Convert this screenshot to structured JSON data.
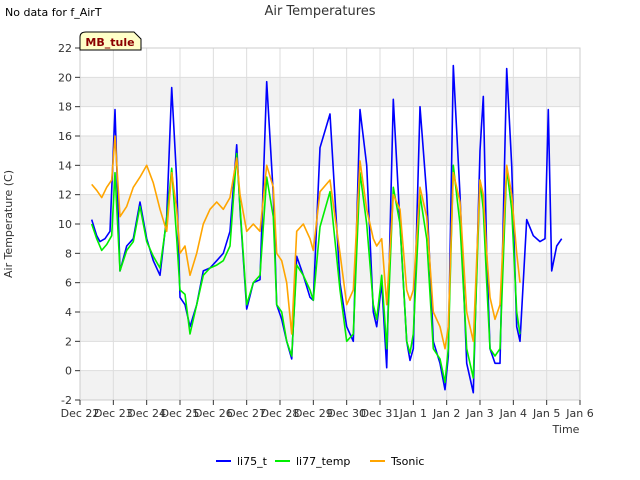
{
  "header": {
    "no_data": "No data for f_AirT"
  },
  "badge": {
    "label": "MB_tule"
  },
  "chart_data": {
    "type": "line",
    "title": "Air Temperatures",
    "xlabel": "Time",
    "ylabel": "Air Temperature (C)",
    "ylim": [
      -2,
      22
    ],
    "yticks": [
      -2,
      0,
      2,
      4,
      6,
      8,
      10,
      12,
      14,
      16,
      18,
      20,
      22
    ],
    "xlim": [
      0,
      15
    ],
    "xticks": [
      0,
      1,
      2,
      3,
      4,
      5,
      6,
      7,
      8,
      9,
      10,
      11,
      12,
      13,
      14,
      15
    ],
    "xtick_labels": [
      "Dec 22",
      "Dec 23",
      "Dec 24",
      "Dec 25",
      "Dec 26",
      "Dec 27",
      "Dec 28",
      "Dec 29",
      "Dec 30",
      "Dec 31",
      "Jan 1",
      "Jan 2",
      "Jan 3",
      "Jan 4",
      "Jan 5",
      "Jan 6"
    ],
    "grid": true,
    "band_shading": true,
    "legend_position": "bottom-center",
    "series": [
      {
        "name": "li75_t",
        "color": "#0000ff",
        "x": [
          0.35,
          0.5,
          0.6,
          0.75,
          0.9,
          1.05,
          1.2,
          1.4,
          1.6,
          1.8,
          2.0,
          2.2,
          2.4,
          2.6,
          2.75,
          2.9,
          3.0,
          3.15,
          3.3,
          3.5,
          3.7,
          3.9,
          4.1,
          4.3,
          4.5,
          4.7,
          4.8,
          5.0,
          5.2,
          5.4,
          5.6,
          5.8,
          5.9,
          6.05,
          6.2,
          6.35,
          6.5,
          6.7,
          6.9,
          7.0,
          7.2,
          7.5,
          7.8,
          8.0,
          8.2,
          8.4,
          8.6,
          8.8,
          8.9,
          9.05,
          9.2,
          9.4,
          9.6,
          9.8,
          9.9,
          10.0,
          10.2,
          10.4,
          10.6,
          10.8,
          10.95,
          11.05,
          11.2,
          11.4,
          11.6,
          11.8,
          12.0,
          12.1,
          12.2,
          12.3,
          12.45,
          12.6,
          12.8,
          12.95,
          13.1,
          13.2,
          13.4,
          13.6,
          13.8,
          13.95,
          14.05,
          14.15,
          14.3,
          14.45
        ],
        "y": [
          10.3,
          9.2,
          8.8,
          9.0,
          9.5,
          17.8,
          6.8,
          8.5,
          9.0,
          11.5,
          9.0,
          7.5,
          6.5,
          10.5,
          19.3,
          13.0,
          5.0,
          4.5,
          3.0,
          4.5,
          6.8,
          7.0,
          7.5,
          8.0,
          9.5,
          15.4,
          11.0,
          4.2,
          6.0,
          6.2,
          19.7,
          12.0,
          4.5,
          3.5,
          2.0,
          0.8,
          7.8,
          6.5,
          5.0,
          4.8,
          15.2,
          17.5,
          6.0,
          3.0,
          2.0,
          17.8,
          14.0,
          4.0,
          3.0,
          6.0,
          0.2,
          18.5,
          10.0,
          2.0,
          0.7,
          1.5,
          18.0,
          12.0,
          2.0,
          0.5,
          -1.3,
          1.0,
          20.8,
          12.0,
          0.5,
          -1.5,
          15.0,
          18.7,
          8.0,
          1.5,
          0.5,
          0.5,
          20.6,
          14.0,
          3.0,
          2.0,
          10.3,
          9.2,
          8.8,
          9.0,
          17.8,
          6.8,
          8.5,
          9.0
        ]
      },
      {
        "name": "li77_temp",
        "color": "#00ee00",
        "x": [
          0.35,
          0.5,
          0.65,
          0.8,
          0.95,
          1.05,
          1.2,
          1.4,
          1.6,
          1.8,
          2.0,
          2.2,
          2.4,
          2.6,
          2.75,
          2.9,
          3.0,
          3.15,
          3.3,
          3.5,
          3.7,
          3.9,
          4.1,
          4.3,
          4.5,
          4.7,
          4.8,
          5.0,
          5.2,
          5.4,
          5.6,
          5.8,
          5.9,
          6.05,
          6.2,
          6.35,
          6.5,
          6.7,
          6.9,
          7.0,
          7.2,
          7.5,
          7.8,
          8.0,
          8.2,
          8.4,
          8.6,
          8.8,
          8.9,
          9.05,
          9.2,
          9.4,
          9.6,
          9.8,
          9.9,
          10.0,
          10.2,
          10.4,
          10.6,
          10.8,
          10.95,
          11.05,
          11.2,
          11.4,
          11.6,
          11.8,
          12.0,
          12.1,
          12.2,
          12.3,
          12.45,
          12.6,
          12.8,
          12.95,
          13.1,
          13.2
        ],
        "y": [
          10.0,
          9.0,
          8.2,
          8.6,
          9.2,
          13.5,
          6.8,
          8.2,
          8.8,
          11.2,
          8.8,
          7.8,
          7.0,
          10.3,
          13.8,
          9.0,
          5.5,
          5.2,
          2.5,
          4.5,
          6.5,
          7.0,
          7.2,
          7.5,
          8.5,
          14.8,
          11.2,
          4.5,
          6.0,
          6.5,
          13.2,
          10.5,
          4.5,
          4.0,
          2.0,
          1.0,
          7.2,
          6.5,
          5.5,
          4.8,
          9.8,
          12.2,
          5.5,
          2.0,
          2.5,
          13.5,
          10.0,
          4.5,
          3.5,
          6.5,
          1.5,
          12.5,
          10.0,
          2.0,
          1.2,
          2.5,
          12.0,
          9.0,
          1.5,
          0.8,
          -0.8,
          1.5,
          14.0,
          10.0,
          1.5,
          -0.5,
          13.0,
          11.0,
          6.0,
          1.5,
          1.0,
          1.5,
          13.8,
          11.0,
          4.0,
          2.5
        ]
      },
      {
        "name": "Tsonic",
        "color": "#ffa500",
        "x": [
          0.35,
          0.5,
          0.65,
          0.8,
          0.95,
          1.05,
          1.2,
          1.4,
          1.6,
          1.8,
          2.0,
          2.2,
          2.4,
          2.6,
          2.75,
          2.9,
          3.0,
          3.15,
          3.3,
          3.5,
          3.7,
          3.9,
          4.1,
          4.3,
          4.5,
          4.7,
          4.8,
          5.0,
          5.2,
          5.4,
          5.6,
          5.8,
          5.9,
          6.05,
          6.2,
          6.35,
          6.5,
          6.7,
          6.9,
          7.0,
          7.2,
          7.5,
          7.8,
          8.0,
          8.2,
          8.4,
          8.6,
          8.8,
          8.9,
          9.05,
          9.2,
          9.4,
          9.6,
          9.8,
          9.9,
          10.0,
          10.2,
          10.4,
          10.6,
          10.8,
          10.95,
          11.05,
          11.2,
          11.4,
          11.6,
          11.8,
          12.0,
          12.1,
          12.2,
          12.3,
          12.45,
          12.6,
          12.8,
          12.95,
          13.1,
          13.2
        ],
        "y": [
          12.7,
          12.3,
          11.8,
          12.5,
          13.0,
          16.0,
          10.5,
          11.2,
          12.5,
          13.2,
          14.0,
          12.8,
          11.0,
          9.5,
          13.5,
          11.0,
          8.0,
          8.5,
          6.5,
          8.0,
          10.0,
          11.0,
          11.5,
          11.0,
          11.8,
          14.5,
          12.0,
          9.5,
          10.0,
          9.5,
          14.0,
          12.5,
          8.0,
          7.5,
          6.0,
          2.5,
          9.5,
          10.0,
          9.0,
          8.2,
          12.2,
          13.0,
          8.0,
          4.5,
          5.5,
          14.3,
          11.0,
          9.0,
          8.5,
          9.0,
          4.5,
          12.0,
          11.0,
          5.5,
          4.8,
          5.5,
          12.5,
          10.5,
          4.0,
          3.0,
          1.5,
          3.0,
          13.5,
          11.5,
          4.0,
          2.0,
          13.0,
          12.0,
          8.0,
          5.0,
          3.5,
          4.5,
          14.0,
          12.0,
          8.0,
          6.0
        ]
      }
    ]
  }
}
